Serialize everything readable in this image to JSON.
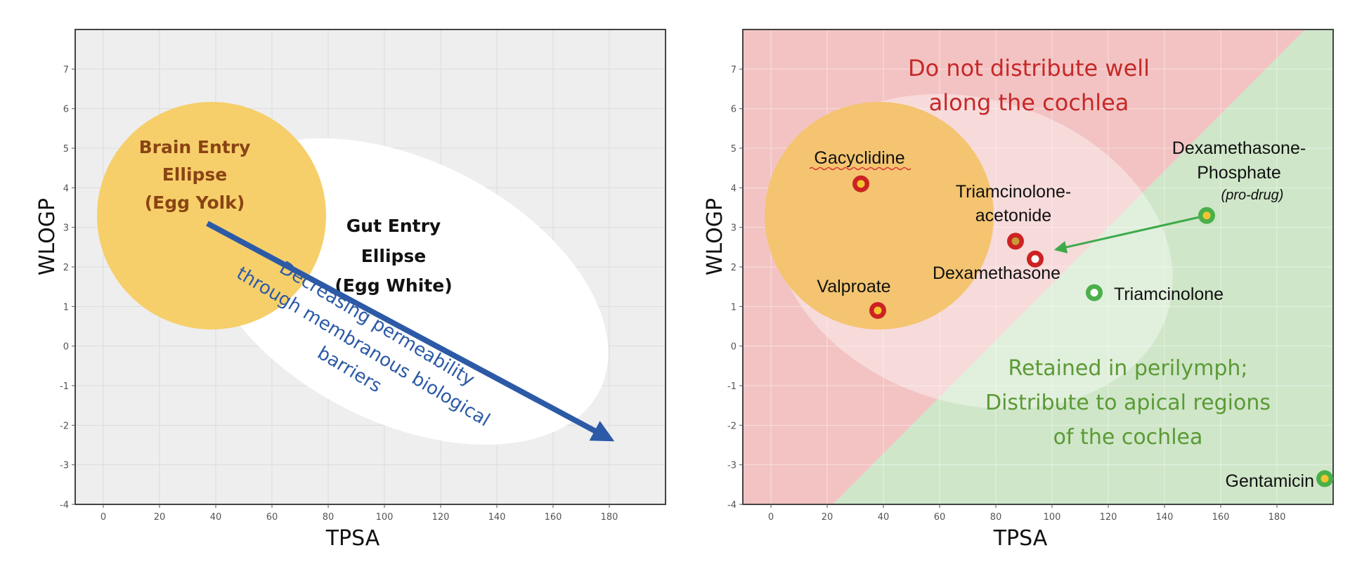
{
  "chart_data": [
    {
      "type": "scatter",
      "title": "",
      "xlabel": "TPSA",
      "ylabel": "WLOGP",
      "xlim": [
        -10,
        200
      ],
      "ylim": [
        -4,
        8
      ],
      "x_ticks": [
        "0",
        "20",
        "40",
        "60",
        "80",
        "100",
        "120",
        "140",
        "160",
        "180"
      ],
      "y_ticks": [
        "-4",
        "-3",
        "-2",
        "-1",
        "0",
        "1",
        "2",
        "3",
        "4",
        "5",
        "6",
        "7"
      ],
      "grid": true,
      "regions": {
        "yolk": {
          "label_lines": [
            "Brain Entry",
            "Ellipse",
            "(Egg Yolk)"
          ],
          "color": "#f6cf6a"
        },
        "white": {
          "label_lines": [
            "Gut Entry",
            "Ellipse",
            "(Egg White)"
          ],
          "color": "#ffffff"
        }
      },
      "arrow": {
        "from": [
          37,
          3.1
        ],
        "to": [
          179,
          -2.3
        ],
        "color": "#2c5aa6",
        "label_lines": [
          "Decreasing permeability",
          "through membranous biological",
          "barriers"
        ]
      }
    },
    {
      "type": "scatter",
      "title": "",
      "xlabel": "TPSA",
      "ylabel": "WLOGP",
      "xlim": [
        -10,
        200
      ],
      "ylim": [
        -4,
        8
      ],
      "x_ticks": [
        "0",
        "20",
        "40",
        "60",
        "80",
        "100",
        "120",
        "140",
        "160",
        "180"
      ],
      "y_ticks": [
        "-4",
        "-3",
        "-2",
        "-1",
        "0",
        "1",
        "2",
        "3",
        "4",
        "5",
        "6",
        "7"
      ],
      "grid": true,
      "regions": {
        "red": {
          "label_lines": [
            "Do not distribute well",
            "along the cochlea"
          ],
          "color": "#f3c3c3"
        },
        "green": {
          "label_lines": [
            "Retained in perilymph;",
            "Distribute to apical regions",
            "of the cochlea"
          ],
          "color": "#cfe6c9"
        }
      },
      "points": [
        {
          "name": "Gacyclidine",
          "x": 32,
          "y": 4.1,
          "group": "red"
        },
        {
          "name": "Valproate",
          "x": 38,
          "y": 0.9,
          "group": "red"
        },
        {
          "name": "Triamcinolone-acetonide",
          "label_lines": [
            "Triamcinolone-",
            "acetonide"
          ],
          "x": 87,
          "y": 2.65,
          "group": "red"
        },
        {
          "name": "Dexamethasone",
          "x": 94,
          "y": 2.2,
          "group": "red"
        },
        {
          "name": "Triamcinolone",
          "x": 115,
          "y": 1.35,
          "group": "green"
        },
        {
          "name": "Dexamethasone-Phosphate",
          "label_lines": [
            "Dexamethasone-",
            "Phosphate"
          ],
          "sublabel": "(pro-drug)",
          "x": 155,
          "y": 3.3,
          "group": "green"
        },
        {
          "name": "Gentamicin",
          "x": 197,
          "y": -3.35,
          "group": "green"
        }
      ],
      "arrow": {
        "from": [
          155,
          3.3
        ],
        "to": [
          102,
          2.45
        ],
        "color": "#3daa4a"
      }
    }
  ],
  "colors": {
    "plot_bg": "#eeeeee",
    "grid": "#dcdcdc",
    "red_marker": "#cc2222",
    "green_marker": "#49b04a",
    "marker_center": "#f4c430"
  }
}
